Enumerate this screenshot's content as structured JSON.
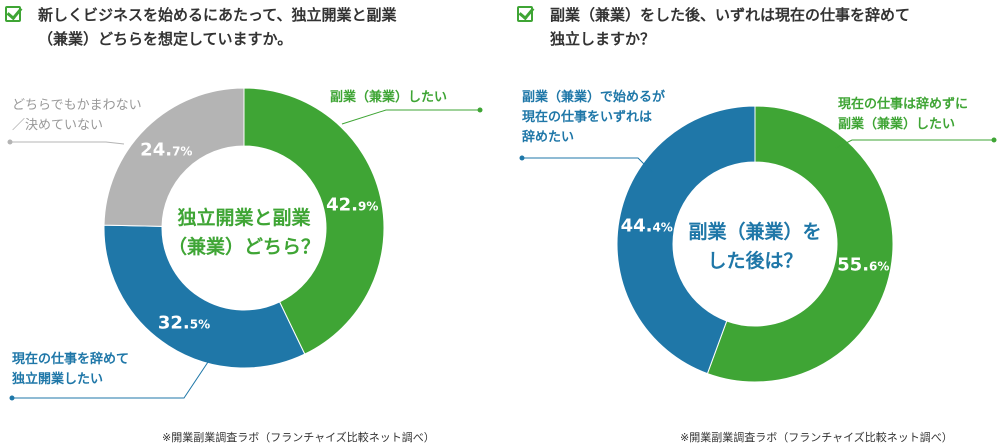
{
  "left": {
    "question": "新しくビジネスを始めるにあたって、独立開業と副業\n（兼業）どちらを想定していますか。",
    "source": "※開業副業調査ラボ（フランチャイズ比較ネット調べ）",
    "center_line1": "独立開業と副業",
    "center_line2": "（兼業）どちら？",
    "labels": {
      "side": "副業（兼業）したい",
      "indep_line1": "現在の仕事を辞めて",
      "indep_line2": "独立開業したい",
      "either_line1": "どちらでもかまわない",
      "either_line2": "／決めていない"
    }
  },
  "right": {
    "question": "副業（兼業）をした後、いずれは現在の仕事を辞めて\n独立しますか？",
    "source": "※開業副業調査ラボ（フランチャイズ比較ネット調べ）",
    "center_line1": "副業（兼業）を",
    "center_line2": "した後は？",
    "labels": {
      "keep_line1": "現在の仕事は辞めずに",
      "keep_line2": "副業（兼業）したい",
      "quit_line1": "副業（兼業）で始めるが",
      "quit_line2": "現在の仕事をいずれは",
      "quit_line3": "辞めたい"
    }
  },
  "colors": {
    "green": "#3fa535",
    "blue": "#1f77a8",
    "gray": "#b4b4b4",
    "check": "#3fa535"
  },
  "chart_data": [
    {
      "type": "pie",
      "donut": true,
      "categories": [
        "副業（兼業）したい",
        "現在の仕事を辞めて独立開業したい",
        "どちらでもかまわない／決めていない"
      ],
      "values": [
        42.9,
        32.5,
        24.7
      ],
      "value_labels": [
        {
          "main": "42.",
          "dec": "9%"
        },
        {
          "main": "32.",
          "dec": "5%"
        },
        {
          "main": "24.",
          "dec": "7%"
        }
      ],
      "colors": [
        "#3fa535",
        "#1f77a8",
        "#b4b4b4"
      ]
    },
    {
      "type": "pie",
      "donut": true,
      "categories": [
        "現在の仕事は辞めずに副業（兼業）したい",
        "副業（兼業）で始めるが現在の仕事をいずれは辞めたい"
      ],
      "values": [
        55.6,
        44.4
      ],
      "value_labels": [
        {
          "main": "55.",
          "dec": "6%"
        },
        {
          "main": "44.",
          "dec": "4%"
        }
      ],
      "colors": [
        "#3fa535",
        "#1f77a8"
      ]
    }
  ]
}
